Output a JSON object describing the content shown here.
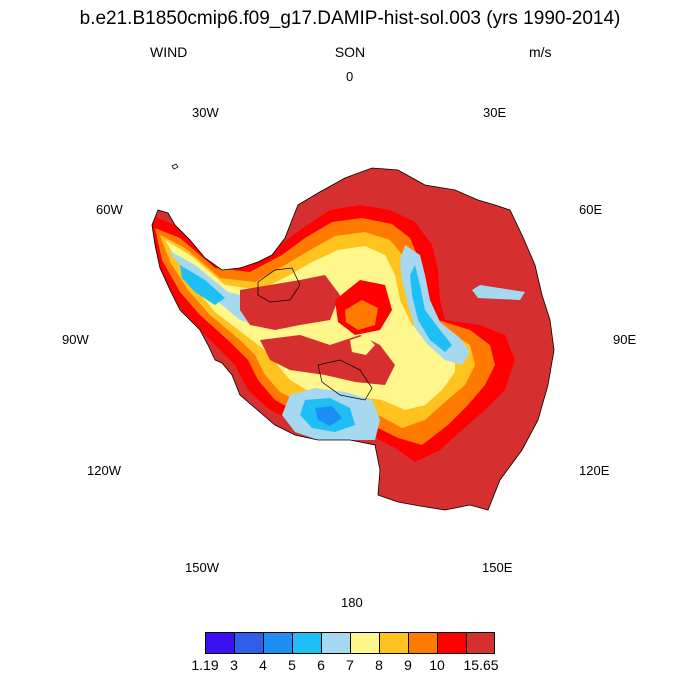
{
  "header": {
    "title": "b.e21.B1850cmip6.f09_g17.DAMIP-hist-sol.003 (yrs 1990-2014)",
    "variable": "WIND",
    "season": "SON",
    "units": "m/s"
  },
  "longitude_labels": {
    "lon_0": "0",
    "lon_30e": "30E",
    "lon_60e": "60E",
    "lon_90e": "90E",
    "lon_120e": "120E",
    "lon_150e": "150E",
    "lon_180": "180",
    "lon_150w": "150W",
    "lon_120w": "120W",
    "lon_90w": "90W",
    "lon_60w": "60W",
    "lon_30w": "30W"
  },
  "colorbar": {
    "colors": [
      "#3a10f0",
      "#2f5ee8",
      "#1e8ef5",
      "#1ebff5",
      "#a6d8f0",
      "#fff68c",
      "#ffc21f",
      "#ff7a00",
      "#ff0000",
      "#d62f2f"
    ],
    "labels": {
      "l0": "1.19",
      "l1": "3",
      "l2": "4",
      "l3": "5",
      "l4": "6",
      "l5": "7",
      "l6": "8",
      "l7": "9",
      "l8": "10",
      "l9": "15.65"
    }
  }
}
